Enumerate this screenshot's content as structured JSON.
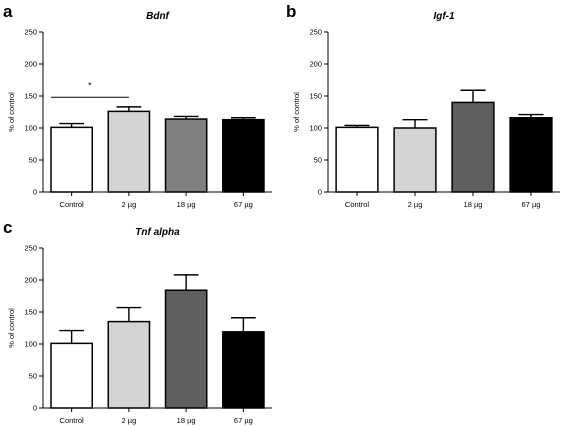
{
  "chart_data": [
    {
      "panel": "a",
      "type": "bar",
      "title": "Bdnf",
      "ylabel": "% of control",
      "xlabel": "",
      "categories": [
        "Control",
        "2 µg",
        "18 µg",
        "67 µg"
      ],
      "values": [
        101,
        126,
        114,
        113
      ],
      "errors": [
        6,
        7,
        4,
        3
      ],
      "colors": [
        "#ffffff",
        "#d3d3d3",
        "#808080",
        "#000000"
      ],
      "ylim": [
        0,
        250
      ],
      "yticks": [
        "0",
        "50",
        "100",
        "150",
        "200",
        "250"
      ],
      "significance": {
        "from": 0,
        "to": 1,
        "y": 148,
        "label": "*"
      }
    },
    {
      "panel": "b",
      "type": "bar",
      "title": "Igf-1",
      "ylabel": "% of control",
      "xlabel": "",
      "categories": [
        "Control",
        "2 µg",
        "18 µg",
        "67 µg"
      ],
      "values": [
        101,
        100,
        140,
        116
      ],
      "errors": [
        3,
        13,
        19,
        5
      ],
      "colors": [
        "#ffffff",
        "#d3d3d3",
        "#5f5f5f",
        "#000000"
      ],
      "ylim": [
        0,
        250
      ],
      "yticks": [
        "0",
        "50",
        "100",
        "150",
        "200",
        "250"
      ]
    },
    {
      "panel": "c",
      "type": "bar",
      "title": "Tnf alpha",
      "ylabel": "% of control",
      "xlabel": "",
      "categories": [
        "Control",
        "2 µg",
        "18 µg",
        "67 µg"
      ],
      "values": [
        101,
        135,
        184,
        119
      ],
      "errors": [
        20,
        22,
        24,
        22
      ],
      "colors": [
        "#ffffff",
        "#d3d3d3",
        "#5f5f5f",
        "#000000"
      ],
      "ylim": [
        0,
        250
      ],
      "yticks": [
        "0",
        "50",
        "100",
        "150",
        "200",
        "250"
      ]
    }
  ]
}
